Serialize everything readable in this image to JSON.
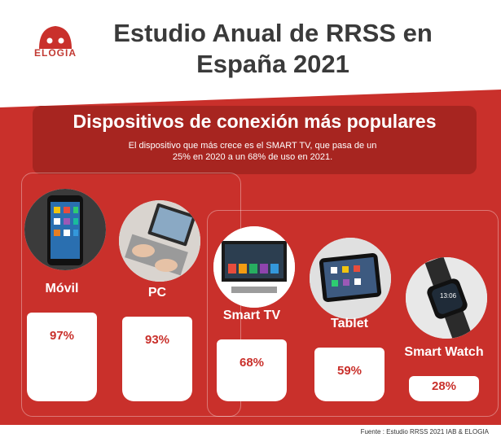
{
  "logo": {
    "text": "ELOGIA"
  },
  "title": "Estudio Anual de RRSS en España 2021",
  "subtitle": "Dispositivos de conexión más populares",
  "description": "El dispositivo que más crece es el SMART TV, que pasa de un 25% en 2020 a un 68% de uso en 2021.",
  "footer": "Fuente : Estudio RRSS 2021 IAB & ELOGIA",
  "colors": {
    "red": "#c9302b",
    "dark_red": "#a72520",
    "white": "#ffffff",
    "title": "#3a3a3a"
  },
  "chart_data": {
    "type": "bar",
    "title": "Dispositivos de conexión más populares",
    "unit": "%",
    "categories": [
      "Móvil",
      "PC",
      "Smart TV",
      "Tablet",
      "Smart Watch"
    ],
    "values": [
      97,
      93,
      68,
      59,
      28
    ],
    "value_labels": [
      "97%",
      "93%",
      "68%",
      "59%",
      "28%"
    ],
    "ylim": [
      0,
      100
    ]
  }
}
